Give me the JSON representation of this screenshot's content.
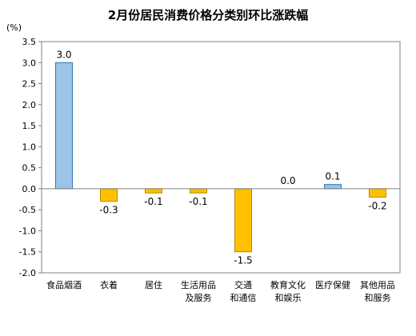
{
  "chart_data": {
    "type": "bar",
    "title": "2月份居民消费价格分类别环比涨跌幅",
    "unit_label": "(%)",
    "categories": [
      [
        "食品烟酒"
      ],
      [
        "衣着"
      ],
      [
        "居住"
      ],
      [
        "生活用品",
        "及服务"
      ],
      [
        "交通",
        "和通信"
      ],
      [
        "教育文化",
        "和娱乐"
      ],
      [
        "医疗保健"
      ],
      [
        "其他用品",
        "和服务"
      ]
    ],
    "values": [
      3.0,
      -0.3,
      -0.1,
      -0.1,
      -1.5,
      0.0,
      0.1,
      -0.2
    ],
    "value_labels": [
      "3.0",
      "-0.3",
      "-0.1",
      "-0.1",
      "-1.5",
      "0.0",
      "0.1",
      "-0.2"
    ],
    "y_ticks": [
      "3.5",
      "3.0",
      "2.5",
      "2.0",
      "1.5",
      "1.0",
      "0.5",
      "0.0",
      "-0.5",
      "-1.0",
      "-1.5",
      "-2.0"
    ],
    "ylim": [
      -2.0,
      3.5
    ],
    "grid": false,
    "colors": {
      "positive_fill": "#9DC3E6",
      "positive_stroke": "#2E75B6",
      "negative_fill": "#FFC000",
      "negative_stroke": "#B88B00",
      "axis": "#808080",
      "frame": "#808080"
    }
  }
}
